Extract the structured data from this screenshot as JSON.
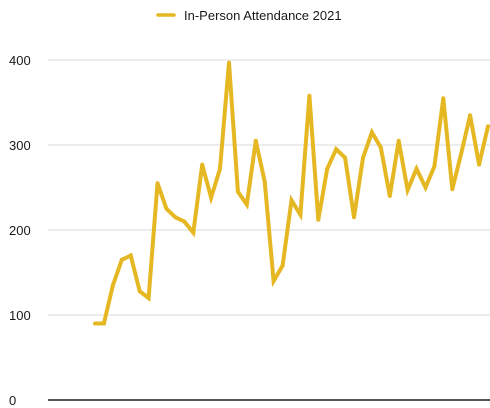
{
  "chart_data": {
    "type": "line",
    "title": "",
    "xlabel": "",
    "ylabel": "",
    "ylim": [
      0,
      400
    ],
    "yticks": [
      0,
      100,
      200,
      300,
      400
    ],
    "grid": true,
    "legend_position": "top",
    "series": [
      {
        "name": "In-Person Attendance 2021",
        "color": "#E5B823",
        "values": [
          90,
          90,
          135,
          165,
          170,
          128,
          120,
          255,
          225,
          215,
          210,
          197,
          277,
          238,
          272,
          397,
          245,
          230,
          305,
          257,
          140,
          158,
          235,
          218,
          358,
          212,
          272,
          295,
          285,
          215,
          285,
          315,
          297,
          240,
          305,
          247,
          272,
          250,
          275,
          355,
          248,
          290,
          335,
          277,
          322
        ]
      }
    ]
  }
}
